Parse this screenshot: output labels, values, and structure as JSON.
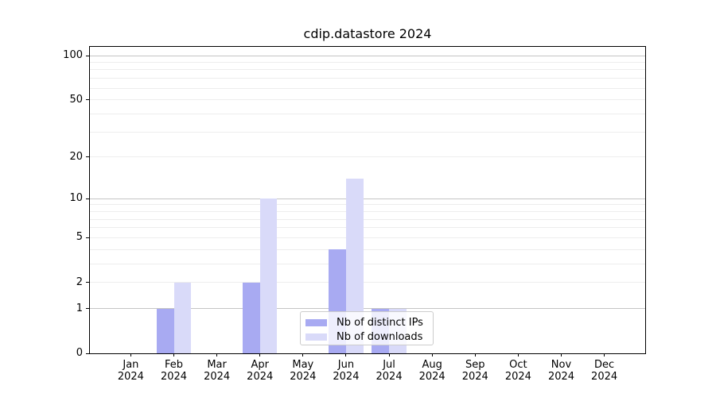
{
  "chart_data": {
    "type": "bar",
    "title": "cdip.datastore 2024",
    "categories": [
      "Jan",
      "Feb",
      "Mar",
      "Apr",
      "May",
      "Jun",
      "Jul",
      "Aug",
      "Sep",
      "Oct",
      "Nov",
      "Dec"
    ],
    "category_year": "2024",
    "series": [
      {
        "name": "Nb of distinct IPs",
        "color": "#a8aaf2",
        "values": [
          0,
          1,
          0,
          2,
          0,
          4,
          1,
          0,
          0,
          0,
          0,
          0
        ]
      },
      {
        "name": "Nb of downloads",
        "color": "#d9daf9",
        "values": [
          0,
          2,
          0,
          10,
          0,
          14,
          1,
          0,
          0,
          0,
          0,
          0
        ]
      }
    ],
    "yscale": "log1p",
    "ylim": [
      0,
      114.7
    ],
    "xlim": [
      -0.95,
      11.95
    ],
    "bar_width": 0.4,
    "y_tick_labels": [
      0,
      1,
      2,
      5,
      10,
      20,
      50,
      100
    ],
    "y_major_gridlines": [
      1,
      10,
      100
    ],
    "y_minor_gridlines": [
      2,
      3,
      4,
      5,
      6,
      7,
      8,
      9,
      20,
      30,
      40,
      50,
      60,
      70,
      80,
      90
    ],
    "grid": "on",
    "legend_position": "lower center",
    "colors": {
      "major_grid": "#c4c4c4",
      "minor_grid": "#ededed",
      "spine": "#000000",
      "text": "#000000",
      "legend_border": "#cccccc"
    }
  }
}
